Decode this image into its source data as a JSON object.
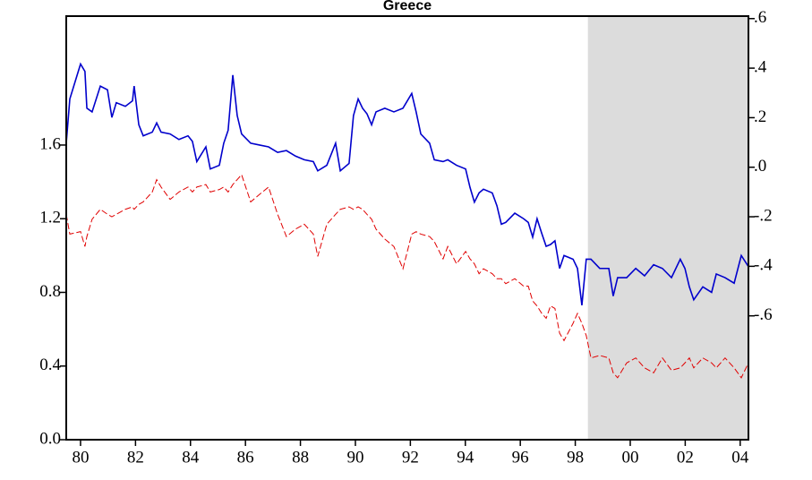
{
  "chart_data": {
    "type": "line",
    "title": "Greece",
    "x": [
      1979.48,
      1979.61,
      1980.0,
      1980.16,
      1980.23,
      1980.42,
      1980.72,
      1980.98,
      1981.14,
      1981.3,
      1981.63,
      1981.89,
      1981.95,
      1982.12,
      1982.28,
      1982.61,
      1982.77,
      1982.93,
      1983.26,
      1983.58,
      1983.91,
      1984.07,
      1984.23,
      1984.56,
      1984.72,
      1985.05,
      1985.21,
      1985.37,
      1985.54,
      1985.7,
      1985.86,
      1986.19,
      1986.51,
      1986.84,
      1987.17,
      1987.49,
      1987.82,
      1988.14,
      1988.47,
      1988.63,
      1988.96,
      1989.28,
      1989.45,
      1989.77,
      1989.93,
      1990.1,
      1990.26,
      1990.42,
      1990.59,
      1990.75,
      1991.07,
      1991.4,
      1991.73,
      1992.05,
      1992.21,
      1992.38,
      1992.7,
      1992.87,
      1993.19,
      1993.36,
      1993.68,
      1994.01,
      1994.17,
      1994.33,
      1994.5,
      1994.66,
      1994.98,
      1995.15,
      1995.31,
      1995.47,
      1995.8,
      1996.12,
      1996.29,
      1996.45,
      1996.61,
      1996.78,
      1996.94,
      1997.1,
      1997.26,
      1997.43,
      1997.59,
      1997.92,
      1998.08,
      1998.24,
      1998.4,
      1998.57,
      1998.89,
      1999.22,
      1999.38,
      1999.54,
      1999.87,
      2000.2,
      2000.52,
      2000.85,
      2001.17,
      2001.5,
      2001.82,
      2001.99,
      2002.15,
      2002.31,
      2002.64,
      2002.96,
      2003.13,
      2003.45,
      2003.78,
      2004.04,
      2004.3
    ],
    "series": [
      {
        "color": "#0000cc",
        "axis": "y",
        "values": [
          1.61,
          1.85,
          2.04,
          2.0,
          1.8,
          1.78,
          1.92,
          1.9,
          1.75,
          1.83,
          1.81,
          1.84,
          1.92,
          1.71,
          1.65,
          1.67,
          1.72,
          1.67,
          1.66,
          1.63,
          1.65,
          1.62,
          1.51,
          1.59,
          1.47,
          1.49,
          1.61,
          1.68,
          1.98,
          1.76,
          1.66,
          1.61,
          1.6,
          1.59,
          1.56,
          1.57,
          1.54,
          1.52,
          1.51,
          1.46,
          1.49,
          1.61,
          1.46,
          1.5,
          1.76,
          1.85,
          1.8,
          1.77,
          1.71,
          1.78,
          1.8,
          1.78,
          1.8,
          1.88,
          1.78,
          1.66,
          1.61,
          1.52,
          1.51,
          1.52,
          1.49,
          1.47,
          1.37,
          1.29,
          1.34,
          1.36,
          1.34,
          1.27,
          1.17,
          1.18,
          1.23,
          1.2,
          1.18,
          1.1,
          1.2,
          1.12,
          1.05,
          1.06,
          1.08,
          0.93,
          1.0,
          0.98,
          0.93,
          0.73,
          0.98,
          0.98,
          0.93,
          0.93,
          0.78,
          0.88,
          0.88,
          0.93,
          0.89,
          0.95,
          0.93,
          0.88,
          0.98,
          0.93,
          0.83,
          0.76,
          0.83,
          0.8,
          0.9,
          0.88,
          0.85,
          1.0,
          0.94
        ]
      },
      {
        "color": "#e00000",
        "axis": "y2",
        "dashed": true,
        "values": [
          -0.19,
          -0.27,
          -0.26,
          -0.32,
          -0.28,
          -0.21,
          -0.17,
          -0.19,
          -0.2,
          -0.19,
          -0.17,
          -0.16,
          -0.17,
          -0.15,
          -0.14,
          -0.1,
          -0.05,
          -0.08,
          -0.13,
          -0.1,
          -0.08,
          -0.1,
          -0.08,
          -0.07,
          -0.1,
          -0.09,
          -0.08,
          -0.1,
          -0.07,
          -0.05,
          -0.03,
          -0.14,
          -0.11,
          -0.08,
          -0.19,
          -0.28,
          -0.25,
          -0.23,
          -0.27,
          -0.36,
          -0.23,
          -0.19,
          -0.17,
          -0.16,
          -0.17,
          -0.16,
          -0.17,
          -0.19,
          -0.21,
          -0.25,
          -0.29,
          -0.32,
          -0.41,
          -0.27,
          -0.26,
          -0.27,
          -0.28,
          -0.3,
          -0.37,
          -0.32,
          -0.39,
          -0.34,
          -0.37,
          -0.39,
          -0.43,
          -0.41,
          -0.43,
          -0.45,
          -0.45,
          -0.47,
          -0.45,
          -0.48,
          -0.48,
          -0.54,
          -0.56,
          -0.59,
          -0.61,
          -0.56,
          -0.57,
          -0.67,
          -0.7,
          -0.63,
          -0.59,
          -0.63,
          -0.68,
          -0.77,
          -0.76,
          -0.77,
          -0.83,
          -0.85,
          -0.79,
          -0.77,
          -0.81,
          -0.83,
          -0.77,
          -0.82,
          -0.81,
          -0.79,
          -0.77,
          -0.81,
          -0.77,
          -0.79,
          -0.81,
          -0.77,
          -0.81,
          -0.85,
          -0.79
        ]
      }
    ],
    "xlim": [
      1979.48,
      2004.3
    ],
    "xticks": [
      {
        "value": 1980,
        "label": "80"
      },
      {
        "value": 1982,
        "label": "82"
      },
      {
        "value": 1984,
        "label": "84"
      },
      {
        "value": 1986,
        "label": "86"
      },
      {
        "value": 1988,
        "label": "88"
      },
      {
        "value": 1990,
        "label": "90"
      },
      {
        "value": 1992,
        "label": "92"
      },
      {
        "value": 1994,
        "label": "94"
      },
      {
        "value": 1996,
        "label": "96"
      },
      {
        "value": 1998,
        "label": "98"
      },
      {
        "value": 2000,
        "label": "00"
      },
      {
        "value": 2002,
        "label": "02"
      },
      {
        "value": 2004,
        "label": "04"
      }
    ],
    "ylim": [
      0,
      2.3
    ],
    "yticks": [
      {
        "value": 0,
        "label": "0.0"
      },
      0.4,
      0.8,
      1.2,
      1.6
    ],
    "y2lim": [
      -1.1,
      0.61
    ],
    "y2ticks": [
      {
        "value": 0.6,
        "label": ".6"
      },
      {
        "value": 0.4,
        "label": ".4"
      },
      {
        "value": 0.2,
        "label": ".2"
      },
      {
        "value": 0,
        "label": ".0"
      },
      {
        "value": -0.2,
        "label": "-.2"
      },
      {
        "value": -0.4,
        "label": "-.4"
      },
      {
        "value": -0.6,
        "label": "-.6"
      }
    ],
    "shaded_x": [
      1998.46,
      2004.3
    ],
    "shade_color": "#dcdcdc"
  }
}
